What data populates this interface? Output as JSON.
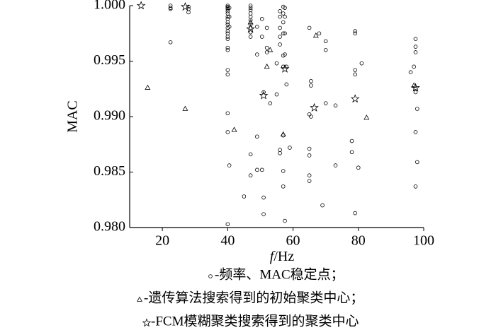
{
  "chart_data": {
    "type": "scatter",
    "xlabel": {
      "italic": "f",
      "rest": "/Hz"
    },
    "ylabel": "MAC",
    "xlim": [
      10,
      100
    ],
    "xticks": [
      20,
      40,
      60,
      80,
      100
    ],
    "ylim": [
      0.98,
      1.0
    ],
    "yticks": [
      {
        "value": 0.98,
        "label": "0.980"
      },
      0.985,
      {
        "value": 0.99,
        "label": "0.990"
      },
      0.995,
      {
        "value": 1.0,
        "label": "1.000"
      }
    ],
    "series": [
      {
        "name": "-频率、MAC稳定点；",
        "marker": "circle",
        "color": "#000000",
        "x": [
          22.5,
          22.5,
          22.5,
          22.5,
          28,
          28,
          28,
          40,
          40,
          40,
          40,
          40,
          40,
          40,
          40,
          40,
          40,
          40,
          40,
          40,
          40,
          40,
          40,
          40,
          40,
          40,
          40,
          40,
          40,
          40.5,
          40.5,
          40.5,
          40.5,
          47,
          47,
          47,
          47,
          47,
          47,
          47,
          47,
          47,
          47,
          47,
          47,
          45,
          49,
          49,
          49,
          49,
          50.5,
          50.5,
          50.5,
          51,
          51,
          51,
          52,
          52,
          52,
          53,
          55,
          55,
          56,
          56,
          56,
          56,
          56,
          56,
          56,
          57,
          57,
          57,
          57,
          57,
          57,
          57,
          57,
          57,
          57.5,
          57.5,
          57.5,
          57.5,
          57.5,
          58,
          58,
          59,
          65,
          65,
          65,
          65,
          65,
          65,
          65.5,
          65.5,
          65.5,
          68,
          69,
          70,
          70,
          70,
          73,
          73,
          78,
          78,
          79,
          79,
          79,
          79,
          79,
          80,
          81,
          96,
          97,
          97.5,
          97.5,
          97.5,
          97.5,
          97.5,
          97.5,
          97.5,
          98,
          98
        ],
        "values": [
          1.0,
          0.9998,
          0.9997,
          0.9967,
          0.9999,
          0.9997,
          0.9994,
          1.0,
          0.9999,
          0.9998,
          0.9997,
          0.9995,
          0.9993,
          0.999,
          0.9988,
          0.9985,
          0.9983,
          0.998,
          0.9977,
          0.9975,
          0.9972,
          0.997,
          0.9962,
          0.996,
          0.9942,
          0.9938,
          0.9903,
          0.9886,
          0.9803,
          0.9998,
          0.999,
          0.9981,
          0.9856,
          1.0,
          0.9998,
          0.9996,
          0.9993,
          0.999,
          0.9987,
          0.9983,
          0.998,
          0.9976,
          0.9972,
          0.9866,
          0.9847,
          0.9828,
          0.9981,
          0.9956,
          0.9882,
          0.9852,
          0.9988,
          0.9972,
          0.9852,
          0.9922,
          0.9812,
          0.9827,
          0.998,
          0.9962,
          0.9958,
          0.9912,
          0.9948,
          0.992,
          0.9995,
          0.999,
          0.998,
          0.9972,
          0.9965,
          0.9867,
          0.987,
          0.9999,
          0.9993,
          0.9985,
          0.9975,
          0.9955,
          0.9945,
          0.9883,
          0.9851,
          0.9837,
          0.9998,
          0.999,
          0.9975,
          0.9956,
          0.9806,
          0.9945,
          0.9929,
          0.9872,
          0.998,
          0.9902,
          0.9871,
          0.9865,
          0.9847,
          0.9842,
          0.9932,
          0.9928,
          0.99,
          0.9975,
          0.982,
          0.9968,
          0.996,
          0.9912,
          0.991,
          0.9856,
          0.9878,
          0.9868,
          0.9977,
          0.9975,
          0.9942,
          0.9938,
          0.9813,
          0.9854,
          0.9948,
          0.994,
          0.9945,
          0.997,
          0.9963,
          0.9958,
          0.9925,
          0.9922,
          0.9886,
          0.9837,
          0.9907,
          0.9859
        ]
      },
      {
        "name": "-遗传算法搜索得到的初始聚类中心；",
        "marker": "triangle",
        "color": "#000000",
        "x": [
          15.5,
          27,
          42,
          47,
          52,
          53,
          57,
          67,
          82.5,
          97
        ],
        "values": [
          0.9926,
          0.9907,
          0.9888,
          0.9985,
          0.9945,
          0.996,
          0.9884,
          0.9973,
          0.9899,
          0.9928
        ]
      },
      {
        "name": "-FCM模糊聚类搜索得到的聚类中心",
        "marker": "star",
        "color": "#000000",
        "x": [
          13.5,
          27,
          47,
          51,
          57.5,
          66.5,
          79,
          97.5
        ],
        "values": [
          1.0,
          0.9999,
          0.9979,
          0.9919,
          0.9943,
          0.9908,
          0.9916,
          0.9926
        ]
      }
    ]
  }
}
